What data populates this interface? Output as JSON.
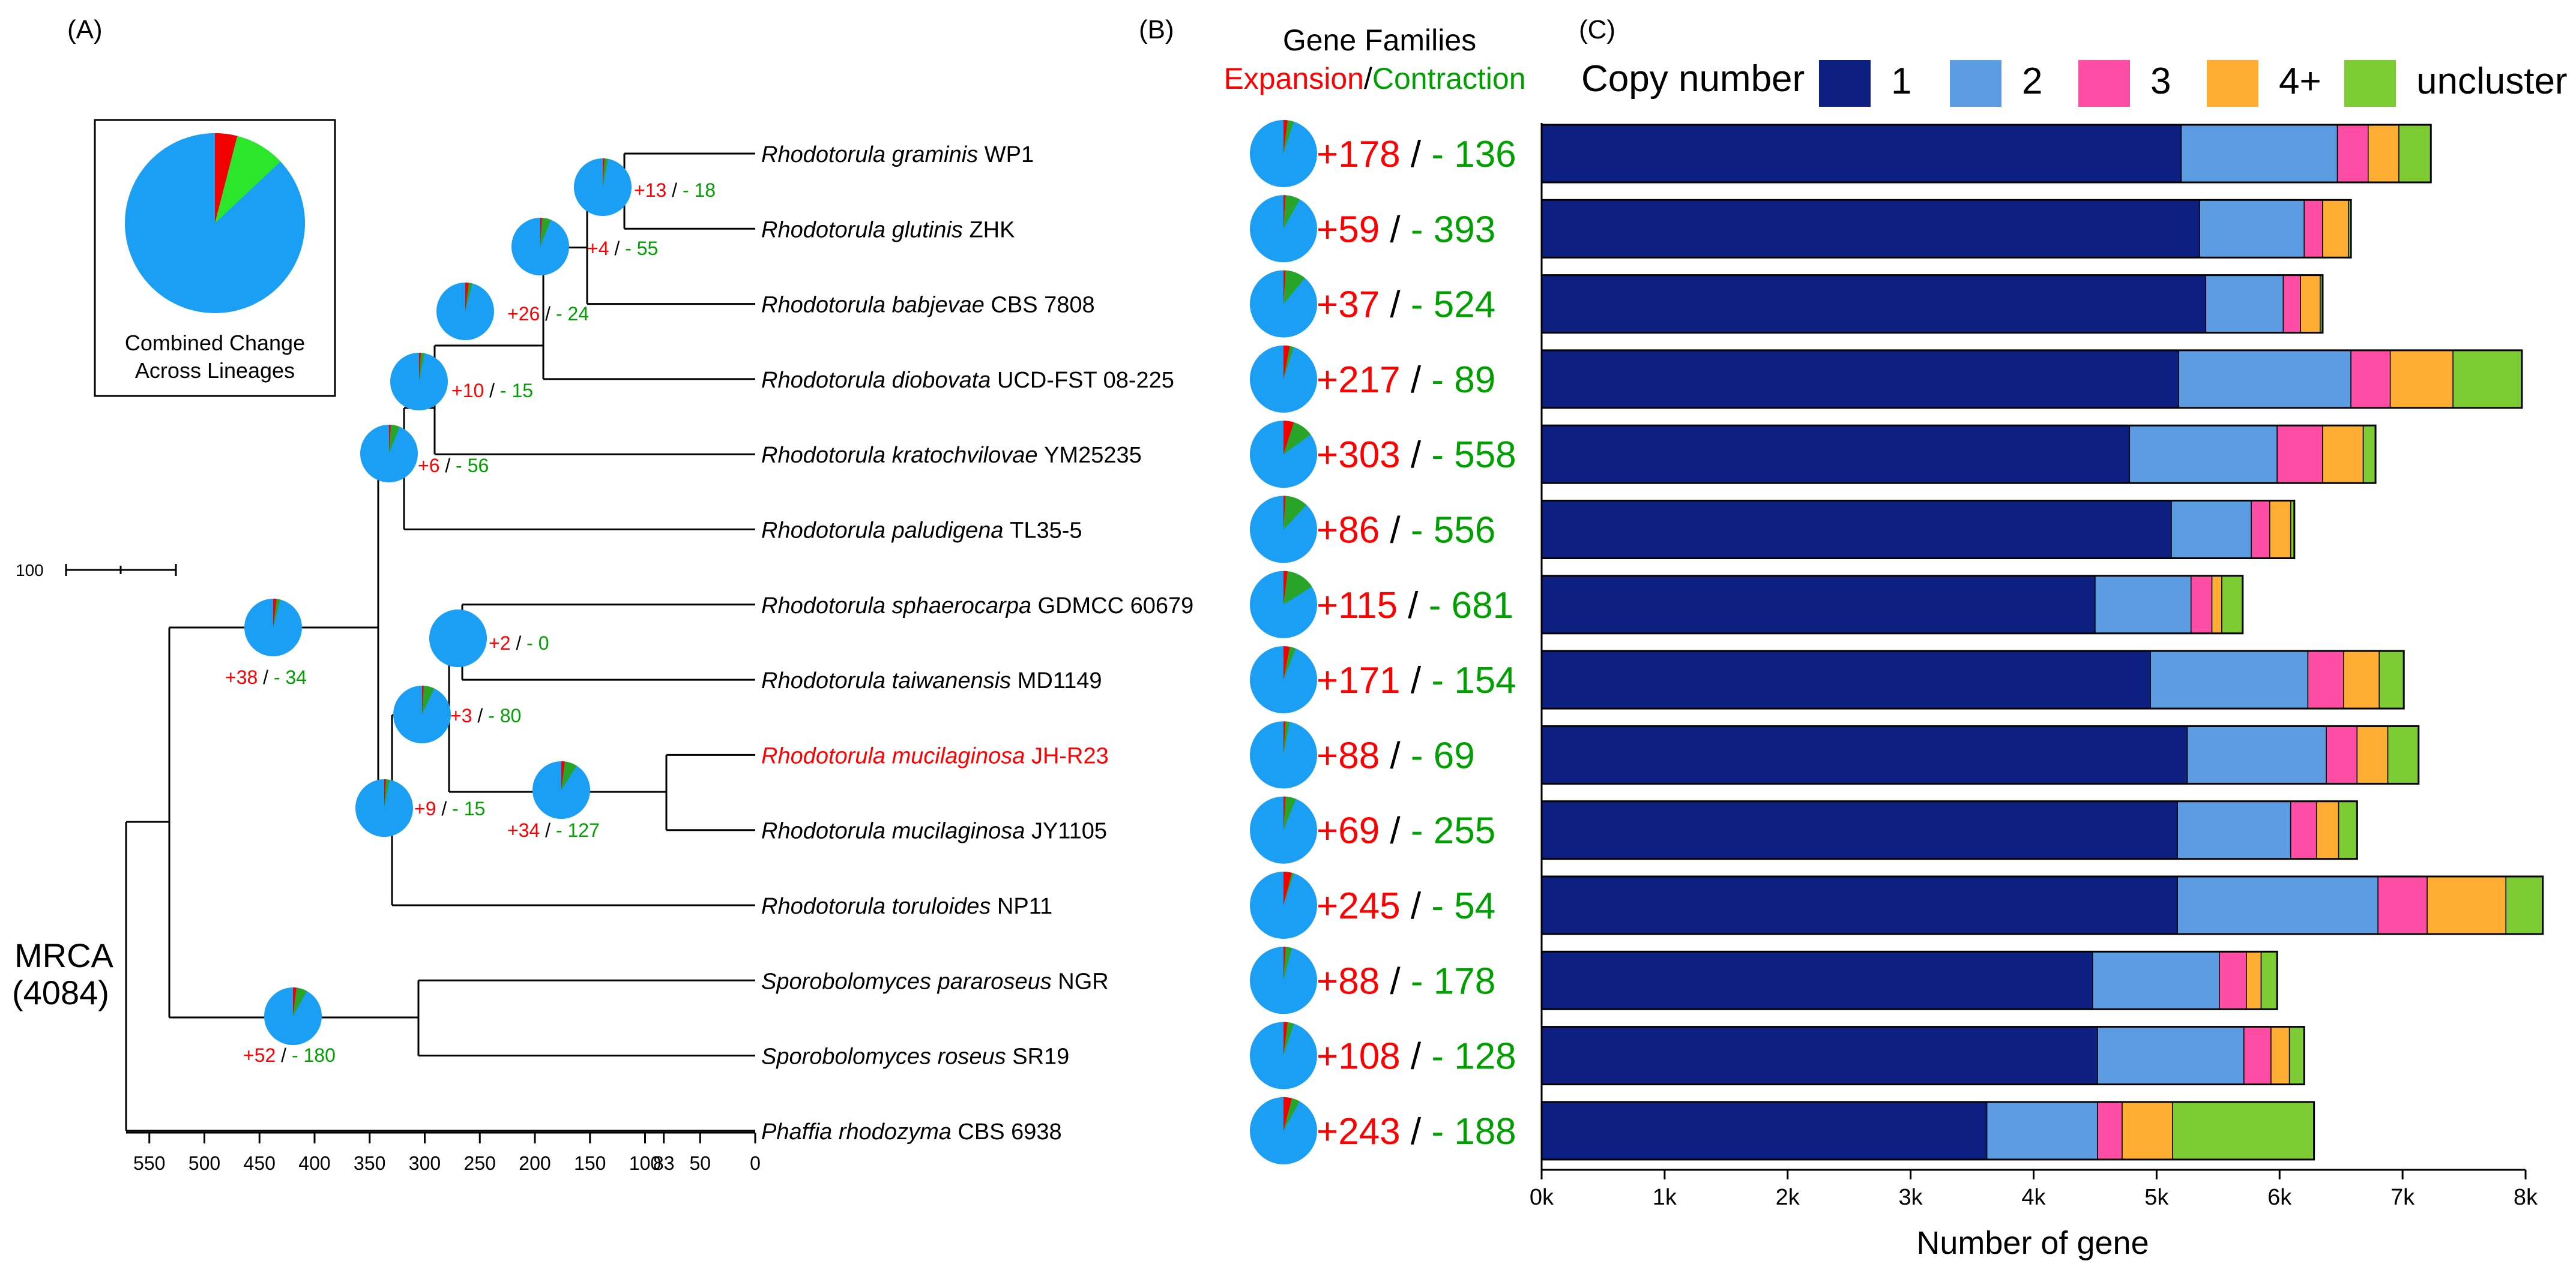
{
  "panels": {
    "a": "(A)",
    "b": "(B)",
    "c": "(C)"
  },
  "colors": {
    "expansion": "#ff0000",
    "contraction": "#00a000",
    "pie_blue": "#1a9ff5",
    "pie_red": "#f20000",
    "pie_green": "#28a428",
    "pie_green_light": "#2be62b",
    "copy1": "#0d1f80",
    "copy2": "#5b9ce3",
    "copy3": "#ff4da6",
    "copy4": "#ffad33",
    "uncluster": "#7dcc33",
    "highlight": "#ff0000",
    "line": "#000000"
  },
  "tree": {
    "scale_label": "100",
    "root_label_1": "MRCA",
    "root_label_2": "(4084)",
    "inset_pie": {
      "title_1": "Combined Change",
      "title_2": "Across Lineages",
      "expansion_frac": 0.04,
      "contraction_frac": 0.09
    },
    "time_axis": {
      "ticks": [
        "550",
        "500",
        "450",
        "400",
        "350",
        "300",
        "250",
        "200",
        "150",
        "100",
        "83",
        "50",
        "0"
      ]
    },
    "taxa": [
      {
        "genus": "Rhodotorula",
        "species": "graminis",
        "strain": "WP1",
        "highlight": false
      },
      {
        "genus": "Rhodotorula",
        "species": "glutinis",
        "strain": "ZHK",
        "highlight": false
      },
      {
        "genus": "Rhodotorula",
        "species": "babjevae",
        "strain": "CBS 7808",
        "highlight": false
      },
      {
        "genus": "Rhodotorula",
        "species": "diobovata",
        "strain": "UCD-FST 08-225",
        "highlight": false
      },
      {
        "genus": "Rhodotorula",
        "species": "kratochvilovae",
        "strain": "YM25235",
        "highlight": false
      },
      {
        "genus": "Rhodotorula",
        "species": "paludigena",
        "strain": "TL35-5",
        "highlight": false
      },
      {
        "genus": "Rhodotorula",
        "species": "sphaerocarpa",
        "strain": "GDMCC 60679",
        "highlight": false
      },
      {
        "genus": "Rhodotorula",
        "species": "taiwanensis",
        "strain": "MD1149",
        "highlight": false
      },
      {
        "genus": "Rhodotorula",
        "species": "mucilaginosa",
        "strain": "JH-R23",
        "highlight": true
      },
      {
        "genus": "Rhodotorula",
        "species": "mucilaginosa",
        "strain": "JY1105",
        "highlight": false
      },
      {
        "genus": "Rhodotorula",
        "species": "toruloides",
        "strain": "NP11",
        "highlight": false
      },
      {
        "genus": "Sporobolomyces",
        "species": "pararoseus",
        "strain": "NGR",
        "highlight": false
      },
      {
        "genus": "Sporobolomyces",
        "species": "roseus",
        "strain": "SR19",
        "highlight": false
      },
      {
        "genus": "Phaffia",
        "species": "rhodozyma",
        "strain": "CBS 6938",
        "highlight": false
      }
    ],
    "internal_nodes": [
      {
        "plus": "+13",
        "minus": "- 18"
      },
      {
        "plus": "+4",
        "minus": "- 55"
      },
      {
        "plus": "+26",
        "minus": "- 24"
      },
      {
        "plus": "+10",
        "minus": "- 15"
      },
      {
        "plus": "+6",
        "minus": "- 56"
      },
      {
        "plus": "+2",
        "minus": "- 0"
      },
      {
        "plus": "+3",
        "minus": "- 80"
      },
      {
        "plus": "+34",
        "minus": "- 127"
      },
      {
        "plus": "+9",
        "minus": "- 15"
      },
      {
        "plus": "+38",
        "minus": "- 34"
      },
      {
        "plus": "+52",
        "minus": "- 180"
      }
    ]
  },
  "gene_families": {
    "title": "Gene Families",
    "expansion_label": "Expansion",
    "separator": "/",
    "contraction_label": "Contraction",
    "rows": [
      {
        "plus": "+178",
        "minus": "- 136"
      },
      {
        "plus": "+59",
        "minus": "- 393"
      },
      {
        "plus": "+37",
        "minus": "- 524"
      },
      {
        "plus": "+217",
        "minus": "- 89"
      },
      {
        "plus": "+303",
        "minus": "- 558"
      },
      {
        "plus": "+86",
        "minus": "- 556"
      },
      {
        "plus": "+115",
        "minus": "- 681"
      },
      {
        "plus": "+171",
        "minus": "- 154"
      },
      {
        "plus": "+88",
        "minus": "- 69"
      },
      {
        "plus": "+69",
        "minus": "- 255"
      },
      {
        "plus": "+245",
        "minus": "- 54"
      },
      {
        "plus": "+88",
        "minus": "- 178"
      },
      {
        "plus": "+108",
        "minus": "- 128"
      },
      {
        "plus": "+243",
        "minus": "- 188"
      }
    ]
  },
  "chart_data": {
    "type": "bar",
    "orientation": "horizontal",
    "stacked": true,
    "xlabel": "Number of gene",
    "legend_title": "Copy number",
    "legend_position": "top",
    "xlim": [
      0,
      8000
    ],
    "xticks": [
      0,
      1000,
      2000,
      3000,
      4000,
      5000,
      6000,
      7000,
      8000
    ],
    "xtick_labels": [
      "0k",
      "1k",
      "2k",
      "3k",
      "4k",
      "5k",
      "6k",
      "7k",
      "8k"
    ],
    "categories": [
      "Rhodotorula graminis WP1",
      "Rhodotorula glutinis ZHK",
      "Rhodotorula babjevae CBS 7808",
      "Rhodotorula diobovata UCD-FST 08-225",
      "Rhodotorula kratochvilovae YM25235",
      "Rhodotorula paludigena TL35-5",
      "Rhodotorula sphaerocarpa GDMCC 60679",
      "Rhodotorula taiwanensis MD1149",
      "Rhodotorula mucilaginosa JH-R23",
      "Rhodotorula mucilaginosa JY1105",
      "Rhodotorula toruloides NP11",
      "Sporobolomyces pararoseus NGR",
      "Sporobolomyces roseus SR19",
      "Phaffia rhodozyma CBS 6938"
    ],
    "series": [
      {
        "name": "1",
        "values": [
          5200,
          5350,
          5400,
          5180,
          4780,
          5120,
          4500,
          4950,
          5250,
          5170,
          5170,
          4480,
          4520,
          3620
        ]
      },
      {
        "name": "2",
        "values": [
          1270,
          850,
          630,
          1400,
          1200,
          650,
          780,
          1280,
          1130,
          920,
          1630,
          1030,
          1190,
          900
        ]
      },
      {
        "name": "3",
        "values": [
          250,
          150,
          140,
          320,
          370,
          150,
          170,
          290,
          250,
          210,
          400,
          220,
          220,
          200
        ]
      },
      {
        "name": "4+",
        "values": [
          250,
          210,
          160,
          510,
          330,
          170,
          80,
          290,
          250,
          180,
          640,
          120,
          150,
          410
        ]
      },
      {
        "name": "uncluster",
        "values": [
          260,
          20,
          20,
          560,
          100,
          30,
          170,
          200,
          250,
          150,
          300,
          130,
          120,
          1150
        ]
      }
    ]
  }
}
